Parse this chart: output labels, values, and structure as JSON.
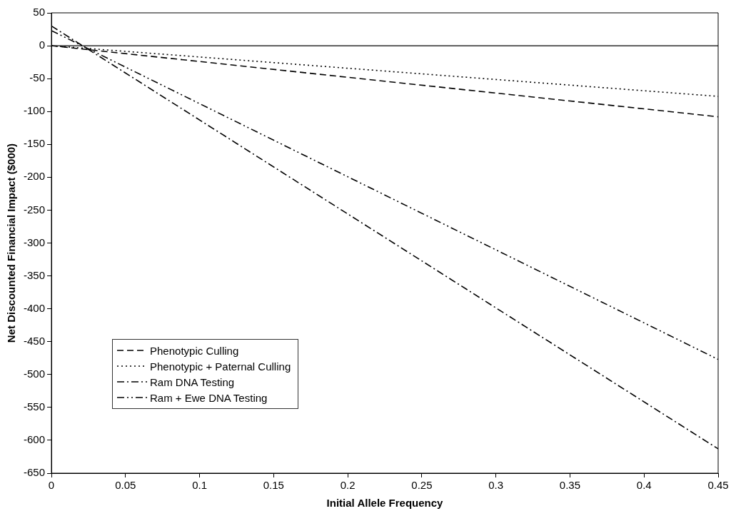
{
  "chart_data": {
    "type": "line",
    "xlabel": "Initial Allele Frequency",
    "ylabel": "Net Discounted Financial Impact ($000)",
    "x": [
      0,
      0.45
    ],
    "series": [
      {
        "name": "Phenotypic Culling",
        "color": "#000000",
        "line_style": "dashed",
        "values": [
          0,
          -108
        ]
      },
      {
        "name": "Phenotypic + Paternal Culling",
        "color": "#000000",
        "line_style": "dotted",
        "values": [
          0,
          -77
        ]
      },
      {
        "name": "Ram DNA Testing",
        "color": "#000000",
        "line_style": "dashdot",
        "values": [
          30,
          -613
        ]
      },
      {
        "name": "Ram + Ewe DNA Testing",
        "color": "#000000",
        "line_style": "dashdotdot",
        "values": [
          23,
          -477
        ]
      }
    ],
    "xlim": [
      0,
      0.45
    ],
    "xticks": [
      0,
      0.05,
      0.1,
      0.15,
      0.2,
      0.25,
      0.3,
      0.35,
      0.4,
      0.45
    ],
    "ylim": [
      -650,
      50
    ],
    "yticks": [
      50,
      0,
      -50,
      -100,
      -150,
      -200,
      -250,
      -300,
      -350,
      -400,
      -450,
      -500,
      -550,
      -600,
      -650
    ],
    "ref_lines": [
      {
        "axis": "y",
        "value": 0,
        "color": "#000000",
        "line_style": "solid"
      }
    ],
    "grid": false,
    "legend": "bottom left",
    "marker": "none"
  }
}
